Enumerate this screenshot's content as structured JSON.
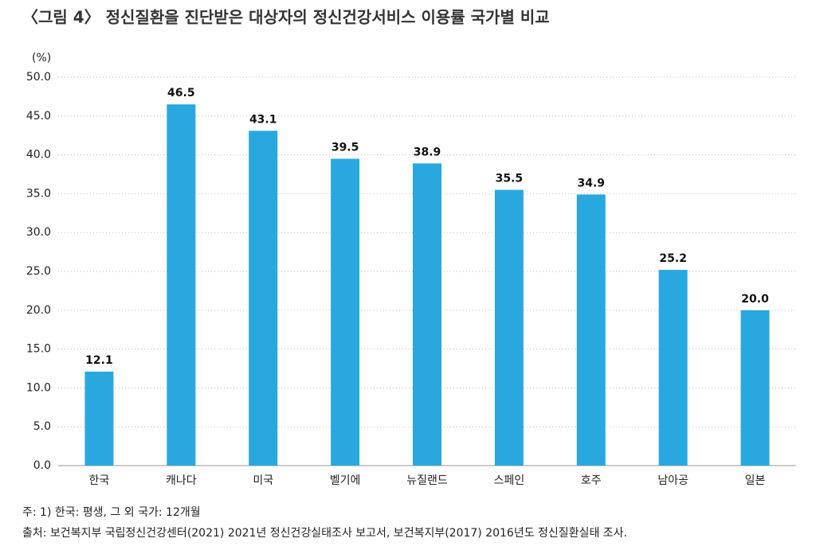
{
  "chart_data": {
    "type": "bar",
    "title": "〈그림 4〉 정신질환을 진단받은 대상자의 정신건강서비스 이용률 국가별 비교",
    "y_label": "(%)",
    "categories": [
      "한국",
      "캐나다",
      "미국",
      "벨기에",
      "뉴질랜드",
      "스페인",
      "호주",
      "남아공",
      "일본"
    ],
    "values": [
      12.1,
      46.5,
      43.1,
      39.5,
      38.9,
      35.5,
      34.9,
      25.2,
      20.0
    ],
    "value_labels": [
      "12.1",
      "46.5",
      "43.1",
      "39.5",
      "38.9",
      "35.5",
      "34.9",
      "25.2",
      "20.0"
    ],
    "color": "#29a8e0",
    "ylim": [
      0,
      50
    ],
    "yticks": [
      {
        "value": 0,
        "label": "0.0"
      },
      {
        "value": 5,
        "label": "5.0"
      },
      {
        "value": 10,
        "label": "10.0"
      },
      {
        "value": 15,
        "label": "15.0"
      },
      {
        "value": 20,
        "label": "20.0"
      },
      {
        "value": 25,
        "label": "25.0"
      },
      {
        "value": 30,
        "label": "30.0"
      },
      {
        "value": 35,
        "label": "35.0"
      },
      {
        "value": 40,
        "label": "40.0"
      },
      {
        "value": 45,
        "label": "45.0"
      },
      {
        "value": 50,
        "label": "50.0"
      }
    ],
    "grid": true,
    "notes": [
      "주: 1) 한국: 평생, 그 외 국가: 12개월",
      "출처: 보건복지부 국립정신건강센터(2021) 2021년 정신건강실태조사 보고서, 보건복지부(2017) 2016년도 정신질환실태 조사."
    ]
  }
}
